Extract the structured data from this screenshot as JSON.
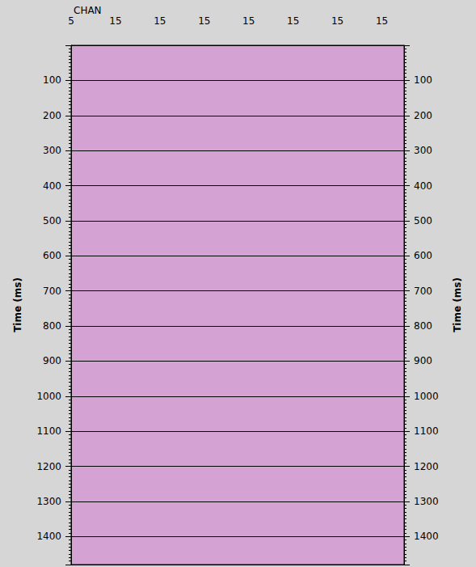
{
  "chart_data": {
    "type": "seismic",
    "title": "CHAN",
    "categories": [
      "5",
      null,
      "15",
      null,
      "15",
      null,
      "15",
      null,
      "15",
      null,
      "15",
      null,
      "15",
      null,
      "15",
      null
    ],
    "y_label": "Time (ms)",
    "ylim": [
      0,
      1480
    ],
    "yticks": [
      100,
      200,
      300,
      400,
      500,
      600,
      700,
      800,
      900,
      1000,
      1100,
      1200,
      1300,
      1400
    ],
    "grid": true
  }
}
